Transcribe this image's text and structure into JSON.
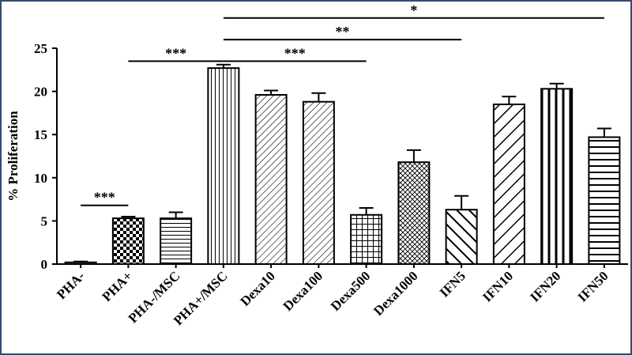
{
  "chart_data": {
    "type": "bar",
    "title": "",
    "xlabel": "",
    "ylabel": "% Proliferation",
    "ylim": [
      0,
      25
    ],
    "yticks": [
      "0",
      "5",
      "10",
      "15",
      "20",
      "25"
    ],
    "grid": false,
    "categories": [
      "PHA-",
      "PHA+",
      "PHA-/MSC",
      "PHA+/MSC",
      "Dexa10",
      "Dexa100",
      "Dexa500",
      "Dexa1000",
      "IFN5",
      "IFN10",
      "IFN20",
      "IFN50"
    ],
    "values": [
      0.2,
      5.3,
      5.3,
      22.7,
      19.6,
      18.8,
      5.7,
      11.8,
      6.3,
      18.5,
      20.3,
      14.7
    ],
    "errors": [
      0.1,
      0.2,
      0.7,
      0.4,
      0.5,
      1.0,
      0.8,
      1.4,
      1.6,
      0.9,
      0.6,
      1.0
    ],
    "patterns": [
      "blank",
      "checker",
      "hlines",
      "vlines",
      "diag-fine",
      "diag-fine",
      "grid",
      "crosshatch",
      "diag-bold",
      "diag-wide",
      "vlines-bold",
      "hlines-wide"
    ],
    "significance": [
      {
        "from": "PHA-",
        "to": "PHA+",
        "label": "***",
        "y": 6.8
      },
      {
        "from": "PHA+",
        "to": "PHA+/MSC",
        "label": "***",
        "y": 23.5
      },
      {
        "from": "PHA+/MSC",
        "to": "Dexa500",
        "label": "***",
        "y": 23.5
      },
      {
        "from": "PHA+/MSC",
        "to": "IFN5",
        "label": "**",
        "y": 26.0
      },
      {
        "from": "PHA+/MSC",
        "to": "IFN50",
        "label": "*",
        "y": 28.5
      }
    ],
    "colors": {
      "bar_stroke": "#000000",
      "bar_fill": "#ffffff",
      "frame": "#3a4a6a"
    }
  }
}
